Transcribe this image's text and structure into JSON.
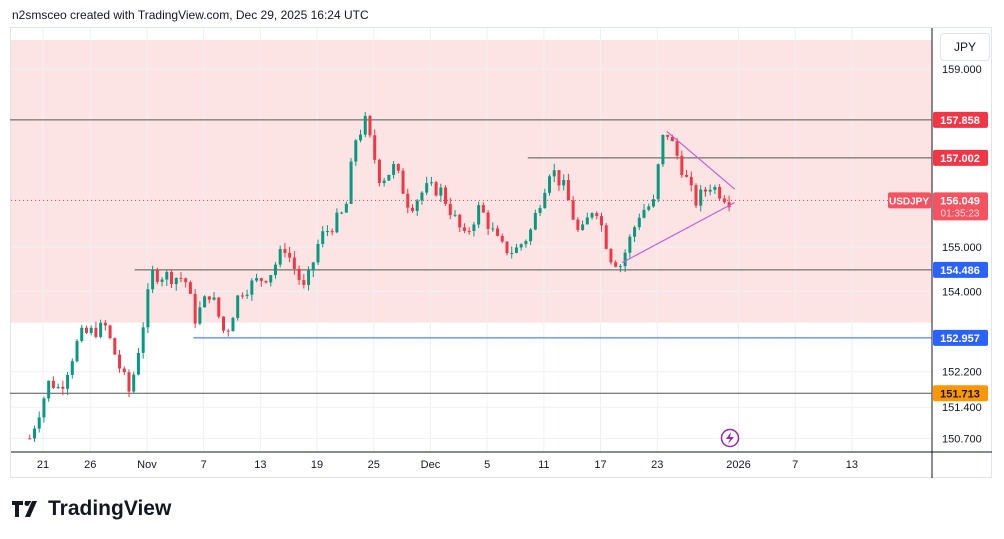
{
  "header": {
    "caption": "n2smsceo created with TradingView.com, Dec 29, 2025 16:24 UTC"
  },
  "logo": {
    "text": "TradingView"
  },
  "currency": "JPY",
  "chart_data": {
    "type": "candlestick",
    "symbol": "USDJPY",
    "last_price": "156.049",
    "countdown": "01:35:23",
    "ylim": [
      150.5,
      159.3
    ],
    "xlim_days": [
      -3.5,
      94
    ],
    "y_ticks": [
      "159.000",
      "155.000",
      "154.000",
      "152.200",
      "151.400",
      "150.700"
    ],
    "x_ticks": [
      {
        "day": 0,
        "label": "21"
      },
      {
        "day": 5,
        "label": "26"
      },
      {
        "day": 11,
        "label": "Nov"
      },
      {
        "day": 17,
        "label": "7"
      },
      {
        "day": 23,
        "label": "13"
      },
      {
        "day": 29,
        "label": "19"
      },
      {
        "day": 35,
        "label": "25"
      },
      {
        "day": 41,
        "label": "Dec"
      },
      {
        "day": 47,
        "label": "5"
      },
      {
        "day": 53,
        "label": "11"
      },
      {
        "day": 59,
        "label": "17"
      },
      {
        "day": 65,
        "label": "23"
      },
      {
        "day": 73.6,
        "label": "2026"
      },
      {
        "day": 79.6,
        "label": "7"
      },
      {
        "day": 85.6,
        "label": "13"
      }
    ],
    "zone": [
      153.3,
      159.7
    ],
    "levels": [
      {
        "price": 157.858,
        "label": "157.858",
        "color": "#f23645",
        "from": -3.5
      },
      {
        "price": 157.002,
        "label": "157.002",
        "color": "#f23645",
        "from": 51.3
      },
      {
        "price": 154.486,
        "label": "154.486",
        "color": "#2962ff",
        "from": 9.7
      },
      {
        "price": 152.957,
        "label": "152.957",
        "color": "#2962ff",
        "from": 15.9,
        "line": "#2962ff"
      },
      {
        "price": 151.713,
        "label": "151.713",
        "color": "#ff9800",
        "from": -3.5
      }
    ],
    "trendlines": [
      [
        [
          66.0,
          157.6
        ],
        [
          73.2,
          156.3
        ]
      ],
      [
        [
          61.3,
          154.65
        ],
        [
          73.2,
          156.0
        ]
      ]
    ],
    "path": [
      [
        -1.4,
        150.7
      ],
      [
        0.7,
        152.0
      ],
      [
        1.8,
        151.8
      ],
      [
        3.9,
        153.0
      ],
      [
        6.6,
        153.2
      ],
      [
        8.1,
        152.3
      ],
      [
        9.2,
        151.7
      ],
      [
        10.8,
        153.5
      ],
      [
        11.5,
        154.4
      ],
      [
        15.0,
        154.3
      ],
      [
        16.1,
        153.4
      ],
      [
        17.7,
        154.0
      ],
      [
        19.3,
        153.0
      ],
      [
        20.8,
        154.0
      ],
      [
        24.0,
        154.4
      ],
      [
        25.6,
        155.0
      ],
      [
        27.7,
        154.0
      ],
      [
        29.3,
        155.2
      ],
      [
        32.0,
        155.8
      ],
      [
        33.0,
        157.4
      ],
      [
        34.1,
        157.8
      ],
      [
        35.7,
        156.5
      ],
      [
        37.2,
        156.8
      ],
      [
        38.8,
        155.9
      ],
      [
        40.4,
        156.3
      ],
      [
        42.0,
        156.3
      ],
      [
        44.6,
        155.2
      ],
      [
        46.2,
        155.9
      ],
      [
        48.4,
        155.0
      ],
      [
        49.9,
        154.9
      ],
      [
        51.5,
        155.3
      ],
      [
        53.7,
        156.8
      ],
      [
        55.2,
        156.3
      ],
      [
        56.8,
        155.2
      ],
      [
        58.4,
        156.0
      ],
      [
        60.0,
        154.8
      ],
      [
        61.1,
        154.6
      ],
      [
        63.2,
        155.8
      ],
      [
        64.8,
        156.0
      ],
      [
        65.3,
        157.3
      ],
      [
        66.0,
        157.6
      ],
      [
        67.4,
        156.9
      ],
      [
        69.0,
        156.0
      ],
      [
        70.6,
        156.4
      ],
      [
        72.7,
        156.05
      ]
    ],
    "colors": {
      "up": "#089981",
      "down": "#f23645",
      "zone": "#fce4e4"
    }
  }
}
